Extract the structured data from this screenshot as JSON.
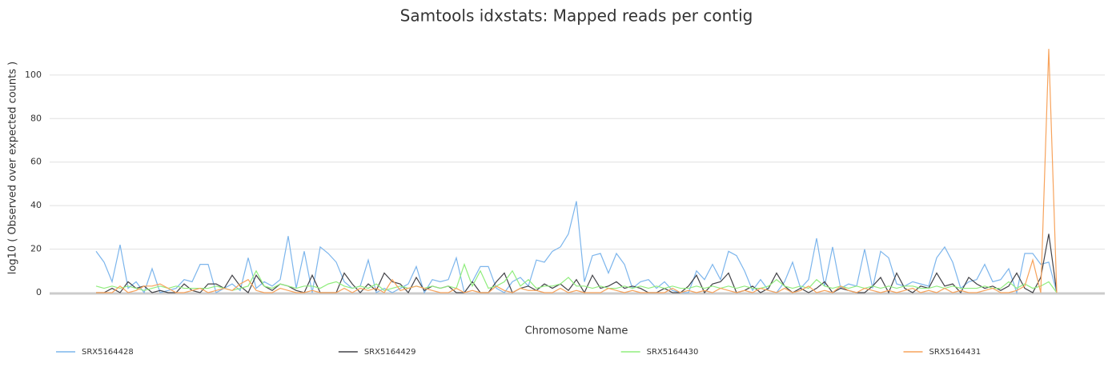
{
  "chart_data": {
    "type": "line",
    "title": "Samtools idxstats: Mapped reads per contig",
    "x_label": "Chromosome Name",
    "y_label": "log10 ( Observed over expected counts )",
    "categories": [
      null,
      null,
      null,
      null,
      null,
      null,
      null,
      null,
      null,
      null,
      null,
      null,
      null,
      null,
      null,
      null,
      null,
      null,
      null,
      null,
      null,
      null,
      null,
      null,
      null,
      null,
      null,
      null,
      null,
      null,
      null,
      null,
      null,
      null,
      null,
      null,
      null,
      null,
      null,
      null,
      null,
      null,
      null,
      null,
      null,
      null,
      null,
      null,
      null,
      null,
      null,
      null,
      null,
      null,
      null,
      null,
      null,
      null,
      null,
      null,
      null,
      null,
      null,
      null,
      null,
      null,
      null,
      null,
      null,
      null,
      null,
      null,
      null,
      null,
      null,
      null,
      null,
      null,
      null,
      null,
      null,
      null,
      null,
      null,
      null,
      null,
      null,
      null,
      null,
      null,
      null,
      null,
      null,
      null,
      null,
      null,
      null,
      null,
      null,
      null,
      null,
      null,
      null,
      null,
      null,
      null,
      null,
      null,
      null,
      null,
      null,
      null,
      null,
      null,
      null,
      null,
      null,
      null,
      null,
      null,
      null
    ],
    "ylim": [
      0,
      115
    ],
    "yticks": [
      0,
      20,
      40,
      60,
      80,
      100
    ],
    "grid": true,
    "legend": "bottom",
    "series": [
      {
        "name": "SRX5164428",
        "color": "#7cb5ec",
        "values": [
          19,
          14,
          5,
          22,
          2,
          5,
          0,
          11,
          0,
          1,
          2,
          6,
          5,
          13,
          13,
          0,
          2,
          4,
          1,
          16,
          2,
          5,
          3,
          6,
          26,
          2,
          19,
          0,
          21,
          18,
          14,
          5,
          2,
          3,
          15,
          0,
          2,
          0,
          2,
          4,
          12,
          0,
          6,
          5,
          6,
          16,
          0,
          5,
          12,
          12,
          2,
          0,
          5,
          7,
          3,
          15,
          14,
          19,
          21,
          27,
          42,
          5,
          17,
          18,
          9,
          18,
          13,
          2,
          5,
          6,
          2,
          5,
          1,
          0,
          0,
          10,
          6,
          13,
          6,
          19,
          17,
          10,
          1,
          6,
          1,
          0,
          5,
          14,
          2,
          6,
          25,
          3,
          21,
          2,
          4,
          3,
          20,
          2,
          19,
          16,
          4,
          3,
          5,
          4,
          3,
          16,
          21,
          14,
          2,
          5,
          6,
          13,
          5,
          6,
          11,
          0,
          18,
          18,
          13,
          14,
          0
        ]
      },
      {
        "name": "SRX5164429",
        "color": "#434348",
        "values": [
          0,
          0,
          2,
          0,
          5,
          2,
          3,
          0,
          1,
          0,
          0,
          4,
          1,
          0,
          4,
          4,
          2,
          8,
          3,
          0,
          8,
          3,
          1,
          4,
          3,
          1,
          0,
          8,
          0,
          0,
          0,
          9,
          4,
          0,
          4,
          1,
          9,
          5,
          4,
          0,
          7,
          1,
          3,
          2,
          3,
          0,
          0,
          5,
          0,
          0,
          5,
          9,
          0,
          2,
          3,
          1,
          4,
          2,
          4,
          1,
          6,
          0,
          8,
          2,
          3,
          5,
          2,
          3,
          2,
          0,
          0,
          2,
          0,
          0,
          3,
          8,
          0,
          4,
          5,
          9,
          0,
          1,
          3,
          0,
          2,
          9,
          3,
          0,
          2,
          0,
          2,
          5,
          0,
          2,
          1,
          0,
          0,
          3,
          7,
          0,
          9,
          2,
          0,
          3,
          2,
          9,
          3,
          4,
          0,
          7,
          4,
          2,
          3,
          1,
          3,
          9,
          2,
          0,
          7,
          27,
          0
        ]
      },
      {
        "name": "SRX5164430",
        "color": "#90ed7d",
        "values": [
          3,
          2,
          3,
          2,
          3,
          2,
          1,
          2,
          3,
          2,
          3,
          2,
          2,
          2,
          2,
          3,
          2,
          1,
          2,
          3,
          10,
          3,
          2,
          4,
          3,
          2,
          3,
          3,
          2,
          4,
          5,
          3,
          2,
          3,
          2,
          4,
          1,
          2,
          3,
          2,
          3,
          2,
          3,
          2,
          3,
          2,
          13,
          3,
          10,
          2,
          3,
          5,
          10,
          3,
          6,
          2,
          3,
          3,
          4,
          7,
          3,
          3,
          2,
          3,
          2,
          2,
          3,
          2,
          3,
          2,
          3,
          2,
          3,
          2,
          2,
          3,
          2,
          3,
          2,
          3,
          2,
          3,
          2,
          2,
          3,
          6,
          3,
          2,
          3,
          2,
          6,
          3,
          2,
          3,
          2,
          3,
          2,
          3,
          2,
          3,
          2,
          3,
          3,
          2,
          2,
          3,
          2,
          3,
          2,
          2,
          2,
          3,
          2,
          2,
          5,
          2,
          4,
          2,
          3,
          5,
          0
        ]
      },
      {
        "name": "SRX5164431",
        "color": "#f7a35c",
        "values": [
          0,
          0,
          0,
          3,
          0,
          1,
          3,
          3,
          4,
          2,
          0,
          0,
          1,
          2,
          0,
          1,
          2,
          1,
          4,
          6,
          1,
          0,
          0,
          2,
          1,
          0,
          0,
          1,
          0,
          0,
          0,
          2,
          0,
          2,
          1,
          2,
          0,
          6,
          1,
          2,
          3,
          2,
          1,
          0,
          0,
          2,
          0,
          1,
          0,
          0,
          3,
          1,
          0,
          2,
          1,
          1,
          0,
          0,
          2,
          0,
          1,
          0,
          0,
          0,
          2,
          1,
          0,
          1,
          0,
          0,
          0,
          0,
          2,
          0,
          1,
          0,
          1,
          0,
          2,
          1,
          0,
          1,
          0,
          2,
          1,
          0,
          2,
          0,
          1,
          3,
          0,
          1,
          0,
          3,
          1,
          0,
          2,
          1,
          0,
          1,
          0,
          1,
          2,
          0,
          1,
          0,
          2,
          0,
          1,
          0,
          0,
          1,
          2,
          0,
          0,
          1,
          3,
          15,
          0,
          112,
          0
        ]
      }
    ]
  }
}
